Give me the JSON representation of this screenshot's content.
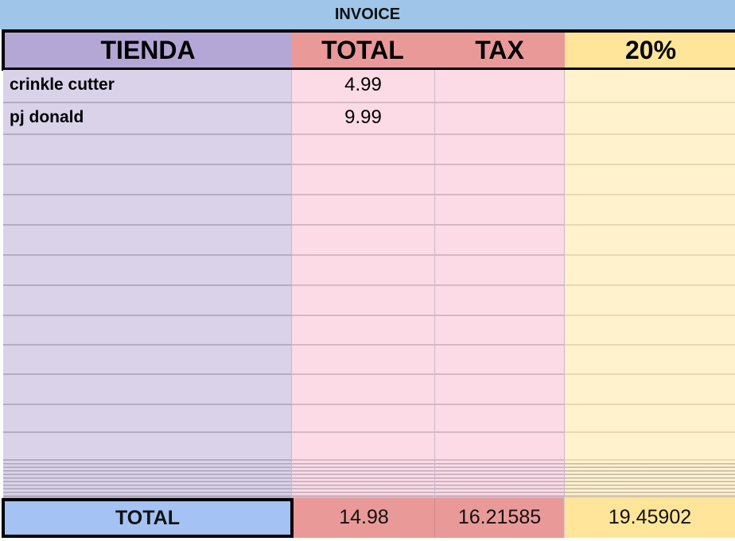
{
  "title": "INVOICE",
  "headers": [
    "TIENDA",
    "TOTAL",
    "TAX",
    "20%"
  ],
  "rows": [
    {
      "tienda": "crinkle cutter",
      "total": "4.99"
    },
    {
      "tienda": "pj donald",
      "total": "9.99"
    }
  ],
  "totals": {
    "label": "TOTAL",
    "total": "14.98",
    "tax": "16.21585",
    "pct": "19.45902"
  },
  "colors": {
    "title_bg": "#9fc5e8",
    "tienda_header": "#b4a7d6",
    "total_header": "#ea9999",
    "pct_header": "#ffe599",
    "totals_label": "#a4c2f4"
  }
}
